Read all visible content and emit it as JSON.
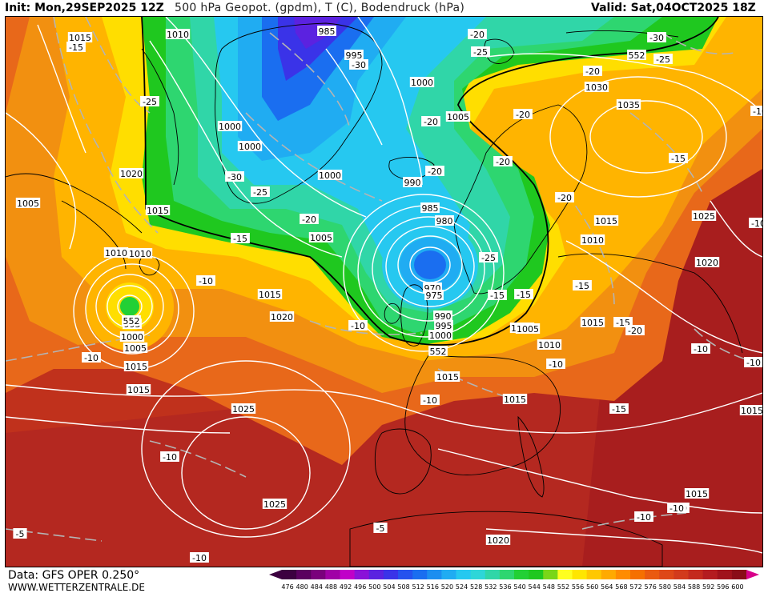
{
  "header": {
    "init": "Init: Mon,29SEP2025 12Z",
    "title": "500 hPa Geopot. (gpdm), T (C), Bodendruck (hPa)",
    "valid": "Valid: Sat,04OCT2025 18Z"
  },
  "footer": {
    "data_source": "Data: GFS OPER 0.250°",
    "website": "WWW.WETTERZENTRALE.DE"
  },
  "legend": {
    "levels": [
      "476",
      "480",
      "484",
      "488",
      "492",
      "496",
      "500",
      "504",
      "508",
      "512",
      "516",
      "520",
      "524",
      "528",
      "532",
      "536",
      "540",
      "544",
      "548",
      "552",
      "556",
      "560",
      "564",
      "568",
      "572",
      "576",
      "580",
      "584",
      "588",
      "592",
      "596",
      "600"
    ],
    "colors": [
      "#3c0040",
      "#5a005f",
      "#7a007c",
      "#a000a6",
      "#c000c8",
      "#8a12d8",
      "#5b22e0",
      "#3a33e8",
      "#2652ee",
      "#1a6ef0",
      "#1c8ef0",
      "#20acf2",
      "#26c8f0",
      "#2ed6d8",
      "#30d6a8",
      "#2ed670",
      "#22d035",
      "#1fc81f",
      "#7ad618",
      "#ffff20",
      "#ffe600",
      "#ffc800",
      "#ffaa00",
      "#ff8c00",
      "#f57000",
      "#ea5a10",
      "#de4818",
      "#d23a1c",
      "#c42a1e",
      "#b41c20",
      "#a0121c",
      "#8a0c18",
      "#d8008a"
    ]
  },
  "colors": {
    "isobar": "#ffffff",
    "isotherm": "#b4b4b4",
    "coast": "#000000"
  },
  "map_labels": {
    "pressure": [
      "1015",
      "1010",
      "995",
      "1000",
      "1030",
      "1035",
      "1005",
      "1000",
      "1000",
      "1020",
      "1015",
      "1000",
      "990",
      "1005",
      "985",
      "980",
      "1015",
      "1010",
      "1025",
      "1020",
      "1010",
      "970",
      "975",
      "1015",
      "1020",
      "990",
      "995",
      "1000",
      "1005",
      "1015",
      "1010",
      "1015",
      "1025",
      "1025",
      "1015",
      "1015",
      "1015",
      "1015",
      "1020",
      "985",
      "995",
      "1000",
      "1005",
      "1010",
      "1015",
      "1015",
      "552",
      "552",
      "552",
      "1010",
      "1005"
    ],
    "temperature": [
      "-15",
      "-25",
      "-30",
      "-25",
      "-30",
      "-20",
      "-20",
      "-20",
      "-20",
      "-30",
      "-25",
      "-20",
      "-20",
      "-15",
      "-10",
      "-10",
      "-10",
      "-15",
      "-25",
      "-15",
      "-15",
      "-20",
      "-15",
      "-10",
      "-10",
      "-10",
      "-10",
      "-10",
      "-5",
      "-5",
      "-10",
      "-15",
      "-10",
      "-10",
      "-15",
      "-20",
      "-10",
      "-20",
      "-10",
      "-25",
      "-10"
    ]
  }
}
